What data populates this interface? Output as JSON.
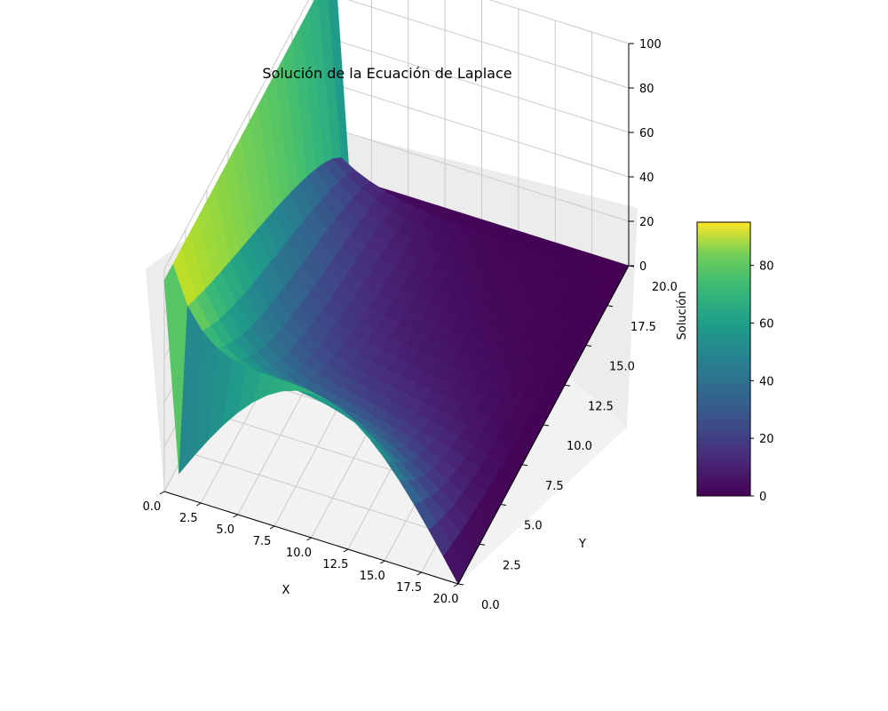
{
  "chart_data": {
    "type": "surface3d",
    "title": "Solución de la Ecuación de Laplace",
    "xlabel": "X",
    "ylabel": "Y",
    "zlabel": "Solución",
    "xlim": [
      0,
      20
    ],
    "ylim": [
      0,
      20
    ],
    "zlim": [
      0,
      100
    ],
    "x_ticks": [
      "0.0",
      "2.5",
      "5.0",
      "7.5",
      "10.0",
      "12.5",
      "15.0",
      "17.5",
      "20.0"
    ],
    "y_ticks": [
      "0.0",
      "2.5",
      "5.0",
      "7.5",
      "10.0",
      "12.5",
      "15.0",
      "17.5",
      "20.0"
    ],
    "z_ticks": [
      "0",
      "20",
      "40",
      "60",
      "80",
      "100"
    ],
    "colorbar": {
      "colormap": "viridis",
      "range": [
        0,
        95
      ],
      "ticks": [
        "0",
        "20",
        "40",
        "60",
        "80"
      ]
    },
    "boundary_conditions": {
      "x0_edge": 95,
      "y0_edge_max": 65,
      "x20_edge": 0,
      "y20_edge": 0
    },
    "grid": true,
    "colors": {
      "pane_side": "#ececec",
      "pane_floor": "#f2f2f2",
      "grid": "#c9c9c9"
    }
  }
}
